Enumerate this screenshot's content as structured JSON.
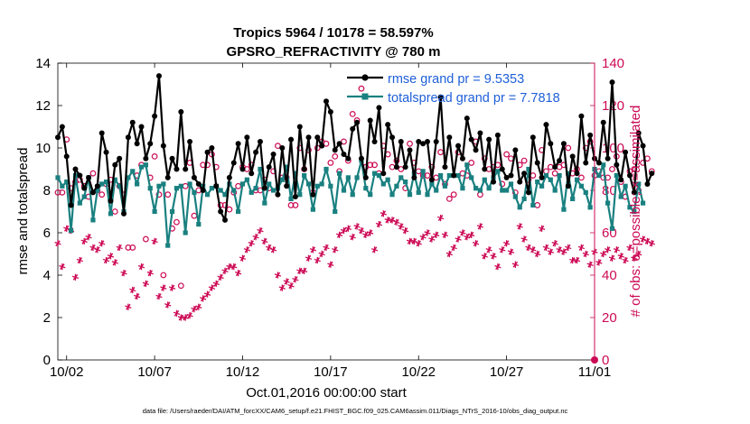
{
  "colors": {
    "rmse": "#000000",
    "spread": "#1a8080",
    "obs": "#cc0a55",
    "legend_text": "#1f5fd8",
    "axis_left": "#000000",
    "axis_right": "#cc0a55"
  },
  "chart_data": {
    "type": "line",
    "title": "Tropics 5964 / 10178 = 58.597%",
    "subtitle": "GPSRO_REFRACTIVITY @ 780 m",
    "xlabel": "Oct.01,2016 00:00:00 start",
    "ylabel": "rmse and totalspread",
    "ylabel_right": "# of obs: o=possible; ×=assimilated",
    "x_range_days": [
      0.5,
      31.0
    ],
    "x_ticks": [
      {
        "day": 1.0,
        "label": "10/02"
      },
      {
        "day": 6.0,
        "label": "10/07"
      },
      {
        "day": 11.0,
        "label": "10/12"
      },
      {
        "day": 16.0,
        "label": "10/17"
      },
      {
        "day": 21.0,
        "label": "10/22"
      },
      {
        "day": 26.0,
        "label": "10/27"
      },
      {
        "day": 31.0,
        "label": "11/01"
      }
    ],
    "ylim": [
      0,
      14
    ],
    "y_ticks": [
      0,
      2,
      4,
      6,
      8,
      10,
      12,
      14
    ],
    "ylim_right": [
      0,
      140
    ],
    "y_ticks_right": [
      0,
      20,
      40,
      60,
      80,
      100,
      120,
      140
    ],
    "legend": [
      {
        "series": "rmse",
        "label": "rmse grand pr = 9.5353"
      },
      {
        "series": "totalspread",
        "label": "totalspread grand pr = 7.7818"
      }
    ],
    "x_start_day": 0.5,
    "x_step_days": 0.25,
    "series": [
      {
        "name": "rmse",
        "values": [
          10.5,
          11.0,
          9.6,
          7.3,
          9.0,
          8.7,
          8.1,
          8.6,
          7.9,
          8.2,
          10.7,
          9.8,
          7.5,
          9.2,
          9.5,
          6.9,
          10.5,
          11.2,
          10.2,
          11.0,
          9.5,
          10.2,
          11.5,
          13.4,
          10.1,
          8.6,
          9.5,
          9.0,
          11.7,
          9.0,
          10.3,
          8.6,
          8.3,
          8.0,
          9.8,
          10.0,
          8.2,
          7.0,
          6.6,
          8.6,
          9.3,
          10.2,
          9.0,
          10.5,
          8.8,
          9.8,
          10.3,
          8.1,
          9.1,
          9.7,
          7.8,
          10.0,
          8.2,
          10.4,
          7.7,
          11.0,
          9.0,
          10.5,
          7.8,
          10.5,
          10.1,
          12.2,
          11.7,
          9.9,
          10.2,
          9.7,
          9.5,
          10.9,
          11.2,
          9.5,
          8.6,
          11.3,
          10.3,
          11.9,
          8.8,
          11.1,
          10.5,
          9.1,
          10.3,
          9.1,
          9.9,
          8.6,
          10.3,
          10.2,
          10.3,
          8.5,
          10.3,
          12.4,
          9.1,
          10.5,
          8.7,
          10.1,
          9.5,
          11.4,
          10.4,
          9.9,
          10.7,
          9.0,
          10.4,
          8.4,
          10.6,
          9.0,
          8.6,
          8.7,
          9.9,
          8.4,
          8.8,
          7.9,
          10.5,
          9.3,
          8.6,
          11.1,
          10.2,
          9.1,
          9.4,
          10.2,
          8.2,
          9.6,
          8.8,
          11.5,
          9.3,
          10.6,
          9.5,
          9.3,
          11.2,
          9.5,
          13.1,
          9.2,
          8.5,
          9.8,
          8.7,
          7.9,
          10.7,
          10.1,
          8.3,
          8.8
        ]
      },
      {
        "name": "totalspread",
        "values": [
          8.6,
          8.2,
          8.4,
          6.1,
          8.7,
          7.4,
          7.7,
          8.6,
          6.6,
          8.0,
          8.3,
          8.4,
          6.9,
          8.5,
          8.2,
          7.0,
          8.6,
          8.9,
          8.3,
          9.1,
          9.2,
          8.1,
          7.0,
          8.2,
          8.3,
          5.4,
          7.0,
          8.1,
          8.2,
          6.0,
          8.3,
          7.9,
          6.4,
          8.2,
          7.8,
          8.1,
          8.2,
          8.0,
          7.8,
          8.3,
          8.0,
          7.0,
          8.3,
          8.5,
          7.9,
          8.1,
          9.0,
          7.4,
          8.3,
          8.0,
          8.1,
          8.5,
          9.1,
          7.6,
          8.8,
          7.8,
          8.7,
          8.3,
          7.1,
          8.2,
          8.3,
          9.0,
          8.2,
          7.0,
          8.8,
          8.0,
          8.6,
          7.8,
          8.6,
          9.4,
          8.1,
          7.8,
          8.8,
          8.7,
          8.3,
          8.5,
          7.8,
          8.2,
          8.6,
          8.4,
          7.8,
          8.8,
          7.9,
          8.9,
          7.8,
          8.3,
          8.0,
          8.7,
          8.2,
          8.7,
          8.7,
          8.7,
          8.1,
          9.2,
          8.6,
          8.1,
          8.0,
          8.5,
          8.1,
          8.6,
          8.9,
          8.0,
          8.0,
          8.3,
          7.7,
          7.2,
          7.6,
          9.0,
          7.3,
          8.4,
          8.2,
          8.7,
          8.5,
          8.0,
          8.7,
          7.1,
          8.8,
          7.6,
          8.5,
          8.2,
          7.9,
          7.2,
          9.0,
          8.7,
          9.2,
          7.4,
          6.2,
          8.7,
          7.7,
          8.2,
          7.2,
          7.0,
          8.3,
          7.4
        ]
      },
      {
        "name": "obs_possible",
        "axis": "right",
        "values": [
          79,
          79,
          104,
          81,
          84,
          85,
          82,
          77,
          88,
          80,
          78,
          83,
          85,
          70,
          82,
          78,
          53,
          53,
          87,
          92,
          57,
          86,
          96,
          78,
          40,
          78,
          62,
          65,
          35,
          82,
          93,
          68,
          80,
          92,
          92,
          97,
          91,
          73,
          73,
          71,
          79,
          82,
          91,
          90,
          92,
          80,
          80,
          85,
          81,
          89,
          101,
          86,
          86,
          73,
          73,
          100,
          90,
          99,
          79,
          100,
          103,
          102,
          93,
          96,
          89,
          103,
          94,
          116,
          113,
          128,
          91,
          92,
          92,
          88,
          101,
          97,
          91,
          94,
          90,
          81,
          102,
          93,
          89,
          87,
          87,
          91,
          86,
          98,
          83,
          76,
          78,
          98,
          88,
          87,
          93,
          103,
          78,
          95,
          90,
          91,
          92,
          83,
          97,
          95,
          79,
          92,
          94,
          85,
          87,
          73,
          99,
          89,
          91,
          88,
          91,
          92,
          100,
          88,
          90,
          86,
          100,
          103,
          87,
          89,
          86,
          86,
          90,
          96,
          84,
          77,
          89,
          90,
          80,
          93,
          95,
          89
        ]
      },
      {
        "name": "obs_assimilated",
        "axis": "right",
        "values": [
          55,
          44,
          62,
          61,
          39,
          47,
          56,
          58,
          53,
          52,
          55,
          47,
          49,
          46,
          53,
          41,
          25,
          33,
          30,
          44,
          36,
          41,
          56,
          30,
          34,
          26,
          34,
          22,
          20,
          20,
          21,
          24,
          25,
          29,
          31,
          34,
          36,
          39,
          42,
          44,
          44,
          41,
          48,
          52,
          55,
          58,
          61,
          56,
          53,
          52,
          40,
          34,
          37,
          35,
          38,
          42,
          42,
          48,
          52,
          47,
          50,
          53,
          45,
          52,
          59,
          61,
          62,
          58,
          63,
          61,
          59,
          60,
          52,
          64,
          69,
          66,
          66,
          65,
          63,
          61,
          56,
          56,
          55,
          58,
          60,
          57,
          59,
          67,
          59,
          50,
          53,
          57,
          60,
          58,
          59,
          55,
          63,
          49,
          52,
          49,
          44,
          52,
          55,
          51,
          45,
          63,
          57,
          53,
          52,
          50,
          62,
          53,
          51,
          55,
          52,
          51,
          53,
          47,
          47,
          53,
          50,
          45,
          51,
          46,
          50,
          52,
          48,
          52,
          49,
          47,
          53,
          48,
          50,
          57,
          56,
          55
        ]
      }
    ]
  },
  "footnote": "data file: /Users/raeder/DAI/ATM_forcXX/CAM6_setup/f.e21.FHIST_BGC.f09_025.CAM6assim.011/Diags_NTrS_2016-10/obs_diag_output.nc"
}
